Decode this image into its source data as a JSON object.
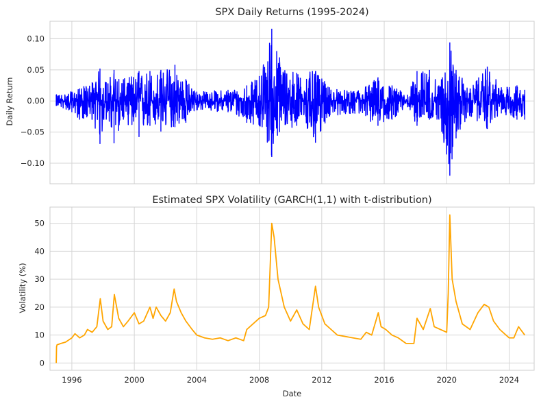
{
  "chart_data": [
    {
      "type": "line",
      "title": "SPX Daily Returns (1995-2024)",
      "xlabel": "",
      "ylabel": "Daily Return",
      "xlim": [
        1994.6,
        2025.6
      ],
      "ylim": [
        -0.133,
        0.128
      ],
      "yticks": [
        -0.1,
        -0.05,
        0.0,
        0.05,
        0.1
      ],
      "ytick_labels": [
        "−0.10",
        "−0.05",
        "0.00",
        "0.05",
        "0.10"
      ],
      "xticks": [
        1996,
        2000,
        2004,
        2008,
        2012,
        2016,
        2020,
        2024
      ],
      "xtick_labels_shown": false,
      "grid": true,
      "series": [
        {
          "color": "#0000ff",
          "envelope": [
            {
              "x": 1995.0,
              "pos": 0.01,
              "neg": -0.008
            },
            {
              "x": 1996.0,
              "pos": 0.015,
              "neg": -0.018
            },
            {
              "x": 1996.5,
              "pos": 0.02,
              "neg": -0.03
            },
            {
              "x": 1997.3,
              "pos": 0.03,
              "neg": -0.03
            },
            {
              "x": 1997.8,
              "pos": 0.052,
              "neg": -0.069
            },
            {
              "x": 1998.2,
              "pos": 0.03,
              "neg": -0.03
            },
            {
              "x": 1998.7,
              "pos": 0.05,
              "neg": -0.068
            },
            {
              "x": 1999.3,
              "pos": 0.035,
              "neg": -0.03
            },
            {
              "x": 2000.3,
              "pos": 0.048,
              "neg": -0.058
            },
            {
              "x": 2001.0,
              "pos": 0.048,
              "neg": -0.04
            },
            {
              "x": 2001.7,
              "pos": 0.05,
              "neg": -0.049
            },
            {
              "x": 2002.6,
              "pos": 0.058,
              "neg": -0.042
            },
            {
              "x": 2003.3,
              "pos": 0.035,
              "neg": -0.035
            },
            {
              "x": 2004.0,
              "pos": 0.015,
              "neg": -0.015
            },
            {
              "x": 2006.0,
              "pos": 0.018,
              "neg": -0.018
            },
            {
              "x": 2007.2,
              "pos": 0.025,
              "neg": -0.035
            },
            {
              "x": 2008.0,
              "pos": 0.04,
              "neg": -0.04
            },
            {
              "x": 2008.8,
              "pos": 0.116,
              "neg": -0.09
            },
            {
              "x": 2009.3,
              "pos": 0.07,
              "neg": -0.05
            },
            {
              "x": 2010.4,
              "pos": 0.045,
              "neg": -0.04
            },
            {
              "x": 2011.6,
              "pos": 0.048,
              "neg": -0.067
            },
            {
              "x": 2012.5,
              "pos": 0.022,
              "neg": -0.025
            },
            {
              "x": 2014.0,
              "pos": 0.015,
              "neg": -0.02
            },
            {
              "x": 2015.6,
              "pos": 0.038,
              "neg": -0.04
            },
            {
              "x": 2016.5,
              "pos": 0.025,
              "neg": -0.03
            },
            {
              "x": 2017.5,
              "pos": 0.01,
              "neg": -0.01
            },
            {
              "x": 2018.1,
              "pos": 0.048,
              "neg": -0.04
            },
            {
              "x": 2018.9,
              "pos": 0.05,
              "neg": -0.03
            },
            {
              "x": 2019.5,
              "pos": 0.025,
              "neg": -0.03
            },
            {
              "x": 2020.2,
              "pos": 0.094,
              "neg": -0.12
            },
            {
              "x": 2020.6,
              "pos": 0.05,
              "neg": -0.06
            },
            {
              "x": 2021.5,
              "pos": 0.02,
              "neg": -0.025
            },
            {
              "x": 2022.6,
              "pos": 0.055,
              "neg": -0.045
            },
            {
              "x": 2023.5,
              "pos": 0.022,
              "neg": -0.02
            },
            {
              "x": 2024.5,
              "pos": 0.025,
              "neg": -0.03
            },
            {
              "x": 2025.0,
              "pos": 0.018,
              "neg": -0.03
            }
          ]
        }
      ]
    },
    {
      "type": "line",
      "title": "Estimated SPX Volatility (GARCH(1,1) with t-distribution)",
      "xlabel": "Date",
      "ylabel": "Volatility (%)",
      "xlim": [
        1994.6,
        2025.6
      ],
      "ylim": [
        -2.6,
        55.8
      ],
      "yticks": [
        0,
        10,
        20,
        30,
        40,
        50
      ],
      "ytick_labels": [
        "0",
        "10",
        "20",
        "30",
        "40",
        "50"
      ],
      "xticks": [
        1996,
        2000,
        2004,
        2008,
        2012,
        2016,
        2020,
        2024
      ],
      "xtick_labels": [
        "1996",
        "2000",
        "2004",
        "2008",
        "2012",
        "2016",
        "2020",
        "2024"
      ],
      "grid": true,
      "series": [
        {
          "color": "#ffa500",
          "x": [
            1995.0,
            1995.02,
            1995.05,
            1995.3,
            1995.6,
            1996.0,
            1996.2,
            1996.5,
            1996.8,
            1997.0,
            1997.3,
            1997.6,
            1997.82,
            1998.0,
            1998.3,
            1998.55,
            1998.72,
            1999.0,
            1999.3,
            1999.6,
            2000.0,
            2000.3,
            2000.6,
            2001.0,
            2001.2,
            2001.4,
            2001.7,
            2002.0,
            2002.3,
            2002.55,
            2002.7,
            2003.0,
            2003.3,
            2003.7,
            2004.0,
            2004.5,
            2005.0,
            2005.5,
            2006.0,
            2006.5,
            2007.0,
            2007.2,
            2007.6,
            2008.0,
            2008.4,
            2008.6,
            2008.8,
            2008.95,
            2009.2,
            2009.6,
            2010.0,
            2010.4,
            2010.8,
            2011.2,
            2011.6,
            2011.8,
            2012.2,
            2012.6,
            2013.0,
            2013.5,
            2014.0,
            2014.5,
            2014.85,
            2015.2,
            2015.62,
            2015.8,
            2016.1,
            2016.5,
            2016.9,
            2017.4,
            2017.9,
            2018.1,
            2018.5,
            2018.95,
            2019.2,
            2019.6,
            2020.0,
            2020.1,
            2020.2,
            2020.35,
            2020.6,
            2021.0,
            2021.5,
            2022.0,
            2022.4,
            2022.7,
            2023.0,
            2023.4,
            2023.8,
            2024.0,
            2024.3,
            2024.6,
            2025.0
          ],
          "y": [
            0,
            5.8,
            6.5,
            7.0,
            7.5,
            9.0,
            10.5,
            9.0,
            10.0,
            12.0,
            11.0,
            13.0,
            23.0,
            15.0,
            12.0,
            13.0,
            24.5,
            16.0,
            13.0,
            15.0,
            18.0,
            14.0,
            15.0,
            20.0,
            16.0,
            20.0,
            17.0,
            15.0,
            18.0,
            26.5,
            22.0,
            18.0,
            15.0,
            12.0,
            10.0,
            9.0,
            8.5,
            9.0,
            8.0,
            9.0,
            8.0,
            12.0,
            14.0,
            16.0,
            17.0,
            20.0,
            50.0,
            45.0,
            30.0,
            20.0,
            15.0,
            19.0,
            14.0,
            12.0,
            27.5,
            20.0,
            14.0,
            12.0,
            10.0,
            9.5,
            9.0,
            8.5,
            11.0,
            10.0,
            18.0,
            13.0,
            12.0,
            10.0,
            9.0,
            7.0,
            7.0,
            16.0,
            12.0,
            19.5,
            13.0,
            12.0,
            11.0,
            25.0,
            53.0,
            30.0,
            22.0,
            14.0,
            12.0,
            18.0,
            21.0,
            20.0,
            15.0,
            12.0,
            10.0,
            9.0,
            9.0,
            13.0,
            10.0
          ]
        }
      ]
    }
  ]
}
